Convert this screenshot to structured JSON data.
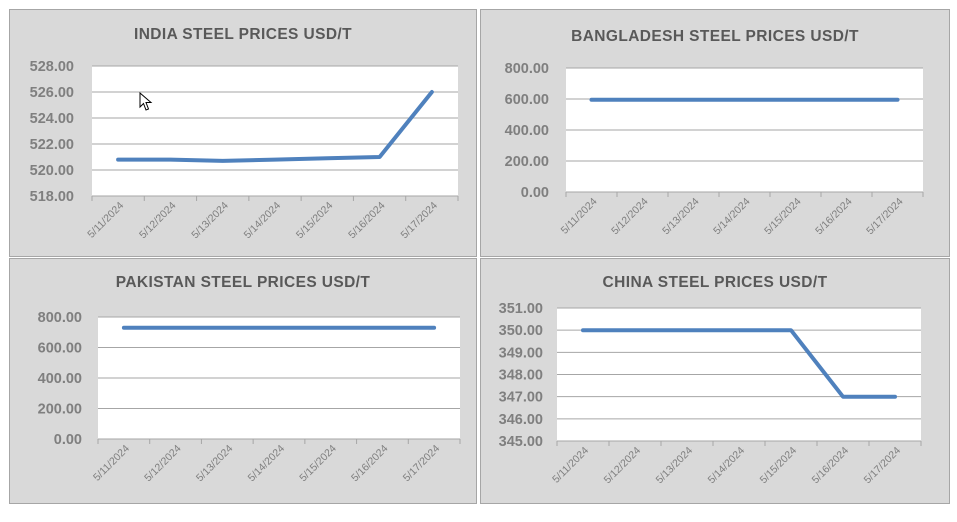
{
  "colors": {
    "panel_bg": "#d9d9d9",
    "plot_bg": "#ffffff",
    "line": "#4f81bd",
    "grid": "#a6a6a6",
    "text": "#595959",
    "tick": "#7f7f7f"
  },
  "chart_data": [
    {
      "type": "line",
      "title": "INDIA STEEL PRICES USD/T",
      "categories": [
        "5/11/2024",
        "5/12/2024",
        "5/13/2024",
        "5/14/2024",
        "5/15/2024",
        "5/16/2024",
        "5/17/2024"
      ],
      "series": [
        {
          "values": [
            520.8,
            520.8,
            520.7,
            520.8,
            520.9,
            521.0,
            526.0
          ]
        }
      ],
      "ylim": [
        518,
        528
      ],
      "yticks": [
        "518.00",
        "520.00",
        "522.00",
        "524.00",
        "526.00",
        "528.00"
      ],
      "grid": true
    },
    {
      "type": "line",
      "title": "BANGLADESH STEEL PRICES USD/T",
      "categories": [
        "5/11/2024",
        "5/12/2024",
        "5/13/2024",
        "5/14/2024",
        "5/15/2024",
        "5/16/2024",
        "5/17/2024"
      ],
      "series": [
        {
          "values": [
            595,
            595,
            595,
            595,
            595,
            595,
            595
          ]
        }
      ],
      "ylim": [
        0,
        800
      ],
      "yticks": [
        "0.00",
        "200.00",
        "400.00",
        "600.00",
        "800.00"
      ],
      "grid": true
    },
    {
      "type": "line",
      "title": "PAKISTAN STEEL PRICES USD/T",
      "categories": [
        "5/11/2024",
        "5/12/2024",
        "5/13/2024",
        "5/14/2024",
        "5/15/2024",
        "5/16/2024",
        "5/17/2024"
      ],
      "series": [
        {
          "values": [
            730,
            730,
            730,
            730,
            730,
            730,
            730
          ]
        }
      ],
      "ylim": [
        0,
        800
      ],
      "yticks": [
        "0.00",
        "200.00",
        "400.00",
        "600.00",
        "800.00"
      ],
      "grid": true
    },
    {
      "type": "line",
      "title": "CHINA STEEL PRICES USD/T",
      "categories": [
        "5/11/2024",
        "5/12/2024",
        "5/13/2024",
        "5/14/2024",
        "5/15/2024",
        "5/16/2024",
        "5/17/2024"
      ],
      "series": [
        {
          "values": [
            350,
            350,
            350,
            350,
            350,
            347,
            347
          ]
        }
      ],
      "ylim": [
        345,
        351
      ],
      "yticks": [
        "345.00",
        "346.00",
        "347.00",
        "348.00",
        "349.00",
        "350.00",
        "351.00"
      ],
      "grid": true
    }
  ]
}
